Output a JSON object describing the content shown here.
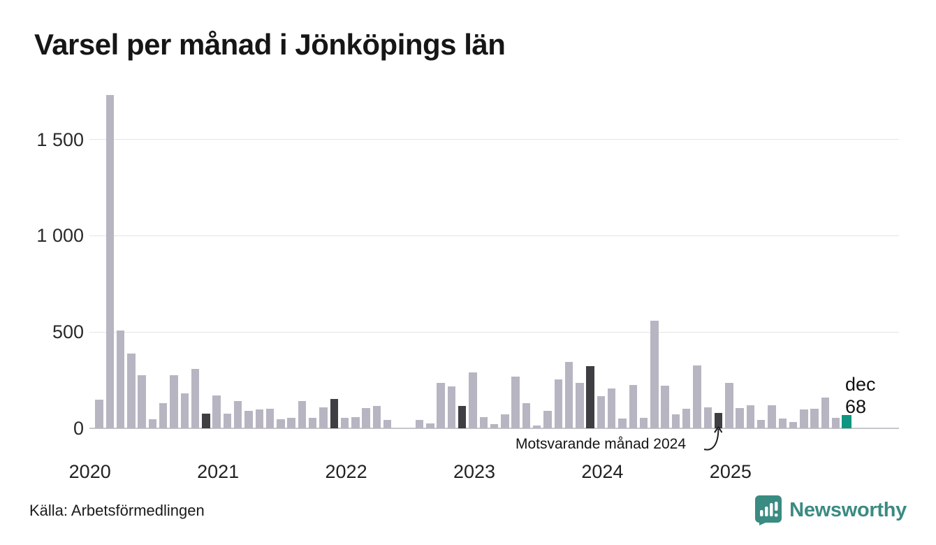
{
  "title": "Varsel per månad i Jönköpings län",
  "source": "Källa: Arbetsförmedlingen",
  "brand": {
    "name": "Newsworthy",
    "color": "#3a8b81"
  },
  "annotation": {
    "text": "Motsvarande månad 2024"
  },
  "last_label": {
    "month": "dec",
    "value": "68"
  },
  "colors": {
    "bar_default": "#b8b5c2",
    "bar_dark": "#3f3e43",
    "bar_teal": "#0f9580",
    "gridline": "#e4e4e6",
    "axis": "#c7c7cb"
  },
  "chart_data": {
    "type": "bar",
    "title": "Varsel per månad i Jönköpings län",
    "xlabel": "",
    "ylabel": "",
    "x": [
      "2020-02",
      "2020-03",
      "2020-04",
      "2020-05",
      "2020-06",
      "2020-07",
      "2020-08",
      "2020-09",
      "2020-10",
      "2020-11",
      "2020-12",
      "2021-01",
      "2021-02",
      "2021-03",
      "2021-04",
      "2021-05",
      "2021-06",
      "2021-07",
      "2021-08",
      "2021-09",
      "2021-10",
      "2021-11",
      "2021-12",
      "2022-01",
      "2022-02",
      "2022-03",
      "2022-04",
      "2022-05",
      "2022-06",
      "2022-07",
      "2022-08",
      "2022-09",
      "2022-10",
      "2022-11",
      "2022-12",
      "2023-01",
      "2023-02",
      "2023-03",
      "2023-04",
      "2023-05",
      "2023-06",
      "2023-07",
      "2023-08",
      "2023-09",
      "2023-10",
      "2023-11",
      "2023-12",
      "2024-01",
      "2024-02",
      "2024-03",
      "2024-04",
      "2024-05",
      "2024-06",
      "2024-07",
      "2024-08",
      "2024-09",
      "2024-10",
      "2024-11",
      "2024-12",
      "2025-01",
      "2025-02",
      "2025-03",
      "2025-04",
      "2025-05",
      "2025-06",
      "2025-07",
      "2025-08",
      "2025-09",
      "2025-10",
      "2025-11",
      "2025-12"
    ],
    "values": [
      150,
      1732,
      508,
      389,
      275,
      47,
      130,
      277,
      183,
      310,
      78,
      172,
      77,
      142,
      92,
      97,
      102,
      46,
      56,
      140,
      56,
      108,
      154,
      56,
      59,
      105,
      117,
      44,
      0,
      0,
      44,
      25,
      237,
      219,
      116,
      289,
      57,
      21,
      72,
      268,
      132,
      13,
      91,
      255,
      344,
      237,
      322,
      168,
      207,
      50,
      225,
      56,
      558,
      223,
      74,
      102,
      328,
      110,
      80,
      235,
      104,
      120,
      44,
      120,
      50,
      32,
      98,
      102,
      160,
      53,
      68
    ],
    "highlight_dark_months": [
      "2020-12",
      "2021-12",
      "2022-12",
      "2023-12",
      "2024-12"
    ],
    "highlight_teal_month": "2025-12",
    "yticks": [
      0,
      500,
      1000,
      1500
    ],
    "ytick_labels": [
      "0",
      "500",
      "1 000",
      "1 500"
    ],
    "year_labels": [
      "2020",
      "2021",
      "2022",
      "2023",
      "2024",
      "2025"
    ],
    "ylim": [
      0,
      1760
    ],
    "grid": true,
    "legend": false
  }
}
